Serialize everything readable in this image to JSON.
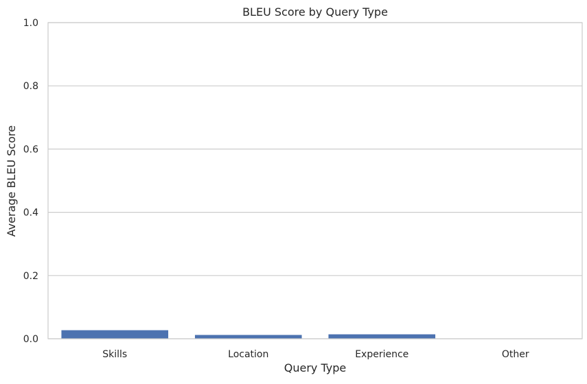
{
  "chart_data": {
    "type": "bar",
    "title": "BLEU Score by Query Type",
    "xlabel": "Query Type",
    "ylabel": "Average BLEU Score",
    "categories": [
      "Skills",
      "Location",
      "Experience",
      "Other"
    ],
    "values": [
      0.027,
      0.012,
      0.014,
      0.0
    ],
    "ylim": [
      0,
      1
    ],
    "yticks": [
      "0.0",
      "0.2",
      "0.4",
      "0.6",
      "0.8",
      "1.0"
    ],
    "ytick_values": [
      0,
      0.2,
      0.4,
      0.6,
      0.8,
      1.0
    ],
    "grid": "horizontal",
    "colors": {
      "bar": "#4c72b0",
      "grid": "#cccccc",
      "frame": "#cccccc"
    }
  }
}
